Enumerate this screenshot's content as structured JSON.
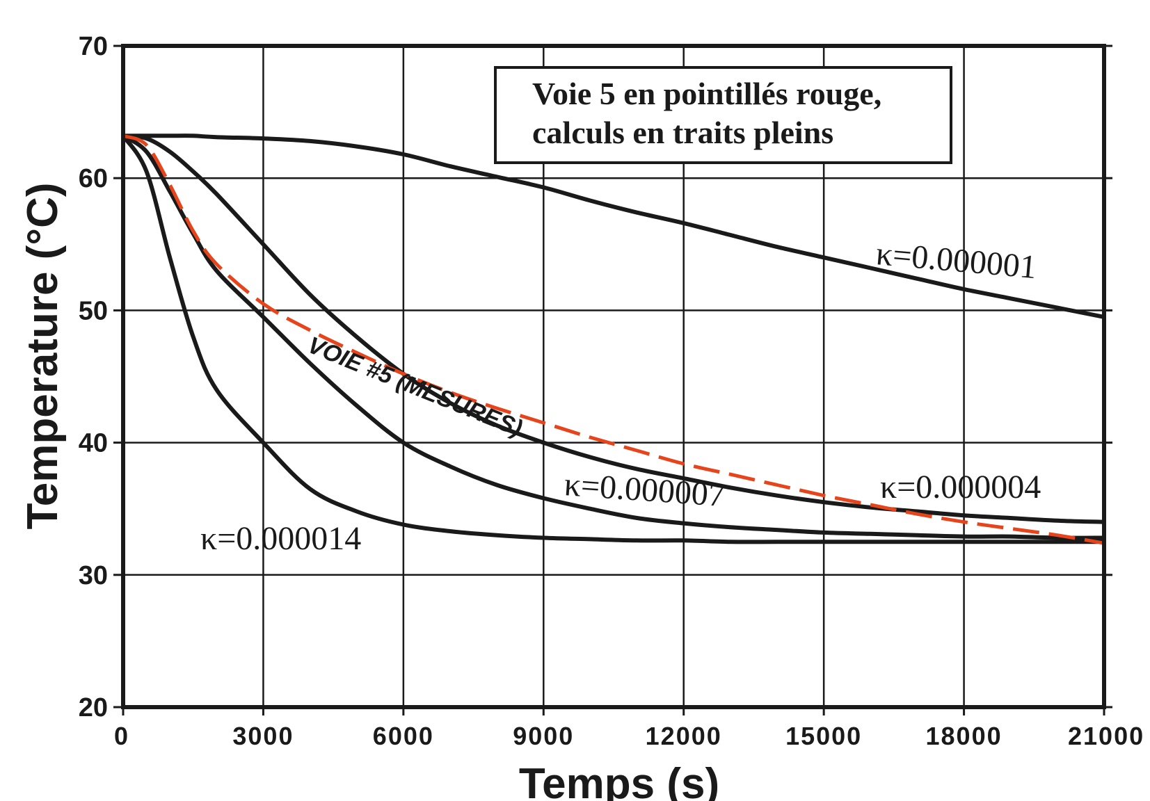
{
  "chart_data": {
    "type": "line",
    "xlabel": "Temps (s)",
    "ylabel": "Temperature (°C)",
    "xlim": [
      0,
      21000
    ],
    "ylim": [
      20,
      70
    ],
    "x_ticks": [
      "0",
      "3000",
      "6000",
      "9000",
      "12000",
      "15000",
      "18000",
      "21000"
    ],
    "y_ticks": [
      "20",
      "30",
      "40",
      "50",
      "60",
      "70"
    ],
    "grid": true,
    "legend_box": {
      "line1": "Voie 5 en pointillés rouge,",
      "line2": "calculs en traits pleins",
      "placement": "top-right"
    },
    "annotation": "VOIE #5 (MESURES)",
    "x": [
      0,
      500,
      1000,
      1500,
      2000,
      3000,
      4000,
      5000,
      6000,
      7000,
      8000,
      9000,
      10000,
      11000,
      12000,
      13000,
      14000,
      15000,
      16000,
      17000,
      18000,
      19000,
      20000,
      21000
    ],
    "series": [
      {
        "name": "κ=0.000001",
        "style": "solid",
        "color": "#1a1a1a",
        "values": [
          63.2,
          63.2,
          63.2,
          63.2,
          63.1,
          63.0,
          62.8,
          62.4,
          61.8,
          60.9,
          60.1,
          59.3,
          58.3,
          57.4,
          56.6,
          55.7,
          54.8,
          54.0,
          53.2,
          52.4,
          51.6,
          50.9,
          50.2,
          49.5
        ]
      },
      {
        "name": "κ=0.000004",
        "style": "solid",
        "color": "#1a1a1a",
        "values": [
          63.2,
          63.0,
          62.0,
          60.5,
          58.8,
          55.0,
          51.2,
          48.0,
          45.2,
          43.0,
          41.3,
          40.0,
          38.9,
          38.0,
          37.3,
          36.6,
          36.0,
          35.5,
          35.1,
          34.8,
          34.5,
          34.3,
          34.1,
          34.0
        ]
      },
      {
        "name": "κ=0.000007",
        "style": "solid",
        "color": "#1a1a1a",
        "values": [
          63.2,
          62.0,
          59.0,
          55.8,
          53.0,
          49.5,
          46.0,
          42.8,
          40.0,
          38.2,
          36.8,
          35.8,
          35.0,
          34.3,
          33.9,
          33.6,
          33.4,
          33.2,
          33.1,
          33.0,
          32.9,
          32.9,
          32.8,
          32.8
        ]
      },
      {
        "name": "κ=0.000014",
        "style": "solid",
        "color": "#1a1a1a",
        "values": [
          63.2,
          60.5,
          54.0,
          48.0,
          44.0,
          40.0,
          36.5,
          34.8,
          33.8,
          33.3,
          33.0,
          32.8,
          32.7,
          32.6,
          32.6,
          32.5,
          32.5,
          32.5,
          32.5,
          32.5,
          32.5,
          32.5,
          32.5,
          32.5
        ]
      },
      {
        "name": "Voie 5",
        "style": "dashed",
        "color": "#e8441c",
        "values": [
          63.2,
          62.5,
          59.5,
          56.0,
          53.5,
          50.5,
          48.5,
          46.8,
          45.2,
          43.8,
          42.6,
          41.5,
          40.4,
          39.4,
          38.4,
          37.6,
          36.8,
          36.0,
          35.3,
          34.6,
          34.0,
          33.5,
          33.0,
          32.4
        ]
      }
    ],
    "series_labels": [
      "κ=0.000001",
      "κ=0.000004",
      "κ=0.000007",
      "κ=0.000014"
    ]
  }
}
